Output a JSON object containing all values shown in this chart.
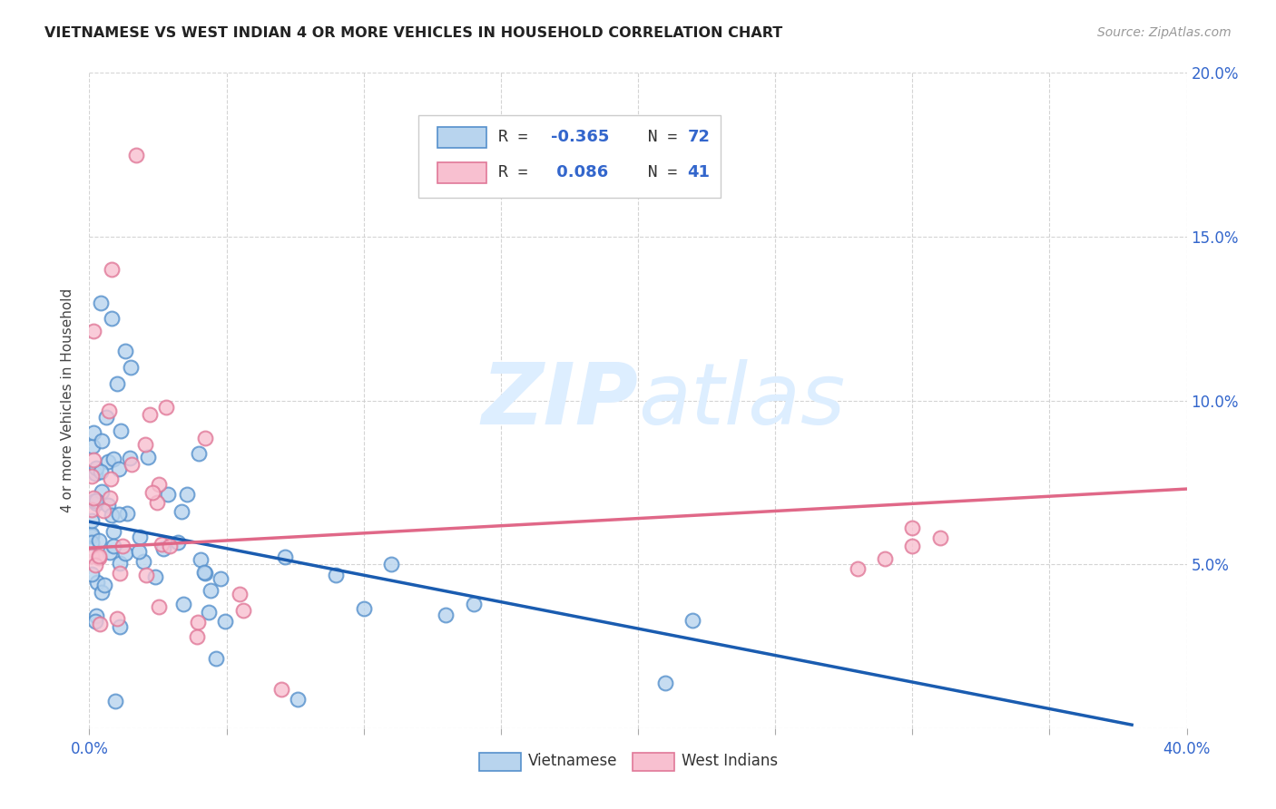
{
  "title": "VIETNAMESE VS WEST INDIAN 4 OR MORE VEHICLES IN HOUSEHOLD CORRELATION CHART",
  "source": "Source: ZipAtlas.com",
  "ylabel": "4 or more Vehicles in Household",
  "xlim": [
    0.0,
    0.4
  ],
  "ylim": [
    0.0,
    0.2
  ],
  "xticks": [
    0.0,
    0.05,
    0.1,
    0.15,
    0.2,
    0.25,
    0.3,
    0.35,
    0.4
  ],
  "yticks": [
    0.0,
    0.05,
    0.1,
    0.15,
    0.2
  ],
  "xticklabels": [
    "0.0%",
    "",
    "",
    "",
    "",
    "",
    "",
    "",
    "40.0%"
  ],
  "yticklabels_right": [
    "",
    "5.0%",
    "10.0%",
    "15.0%",
    "20.0%"
  ],
  "vietnamese_color_face": "#b8d4ee",
  "vietnamese_color_edge": "#5590cc",
  "westindian_color_face": "#f8c0d0",
  "westindian_color_edge": "#e07898",
  "vietnamese_line_color": "#1a5cb0",
  "westindian_line_color": "#e06888",
  "watermark_color": "#ddeeff",
  "background_color": "#ffffff",
  "legend_r_viet": "-0.365",
  "legend_n_viet": "72",
  "legend_r_west": "0.086",
  "legend_n_west": "41",
  "viet_seed": 42,
  "west_seed": 99
}
